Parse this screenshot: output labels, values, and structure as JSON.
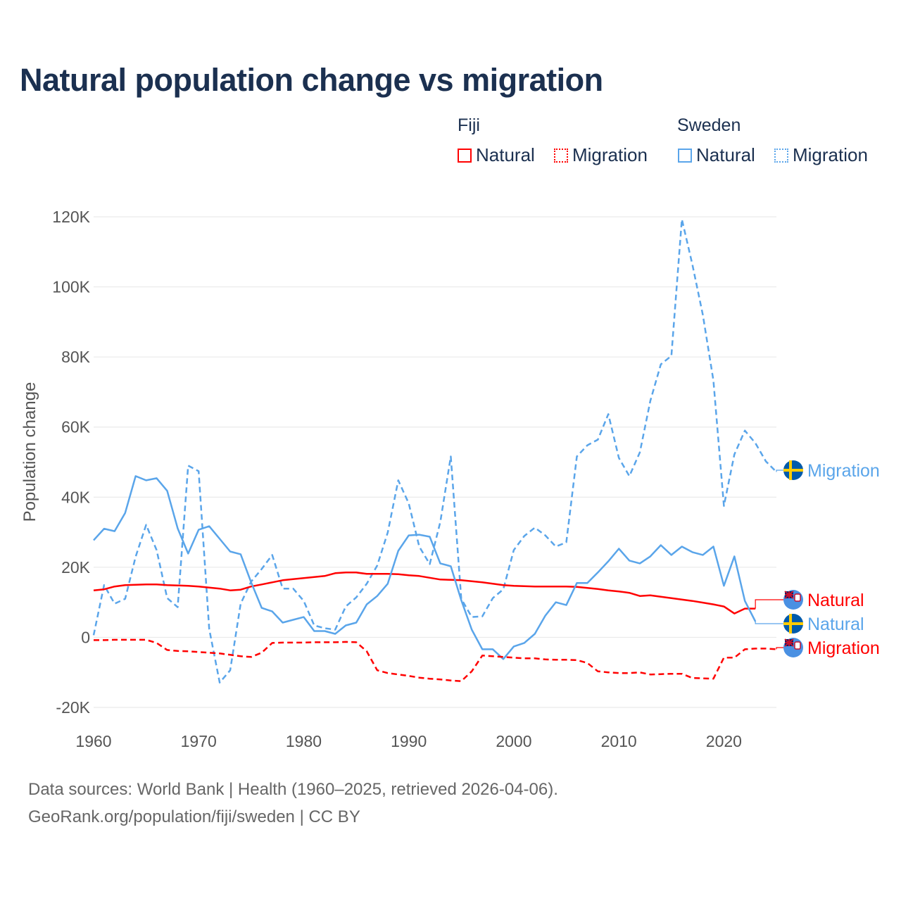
{
  "chart_data": {
    "type": "line",
    "title": "Natural population change vs migration",
    "xlabel": "",
    "ylabel": "Population change",
    "xlim": [
      1960,
      2025
    ],
    "ylim": [
      -20000,
      120000
    ],
    "x_ticks": [
      "1960",
      "1970",
      "1980",
      "1990",
      "2000",
      "2010",
      "2020"
    ],
    "x_tick_values": [
      1960,
      1970,
      1980,
      1990,
      2000,
      2010,
      2020
    ],
    "y_ticks": [
      "-20K",
      "0",
      "20K",
      "40K",
      "60K",
      "80K",
      "100K",
      "120K"
    ],
    "y_tick_values": [
      -20000,
      0,
      20000,
      40000,
      60000,
      80000,
      100000,
      120000
    ],
    "grid": true,
    "legend_placement": "top-right",
    "value_unit_multiplier": 1000,
    "legend": {
      "groups": [
        {
          "name": "Fiji",
          "items": [
            "Natural",
            "Migration"
          ]
        },
        {
          "name": "Sweden",
          "items": [
            "Natural",
            "Migration"
          ]
        }
      ]
    },
    "series": [
      {
        "name": "Sweden Migration",
        "country": "Sweden",
        "kind": "Migration",
        "label": "Migration",
        "color": "#5aa5ea",
        "dashed": true,
        "start_year": 1960,
        "values": [
          0.6,
          14.9,
          9.6,
          11,
          23,
          32.1,
          24.9,
          11.2,
          8.6,
          49,
          47.4,
          2.4,
          -12.9,
          -9.4,
          9.6,
          15.9,
          19.5,
          23.5,
          13.9,
          13.9,
          10.4,
          3.4,
          2.6,
          2.2,
          8.8,
          11.4,
          15.3,
          20.5,
          29.9,
          44.8,
          38.2,
          25.9,
          20.9,
          32.9,
          51.6,
          11,
          5.8,
          6,
          11.2,
          13.7,
          24.9,
          28.9,
          31.3,
          29.1,
          25.9,
          27.1,
          51.6,
          54.8,
          56.4,
          63.7,
          51.2,
          46,
          52.8,
          67.5,
          77.9,
          80.3,
          119.3,
          106.4,
          92,
          73.3,
          37.5,
          52.2,
          59,
          55.4,
          50.2,
          47.2
        ]
      },
      {
        "name": "Fiji Natural",
        "country": "Fiji",
        "kind": "Natural",
        "label": "Natural",
        "color": "#ff0000",
        "dashed": false,
        "start_year": 1960,
        "values": [
          13.4,
          13.7,
          14.5,
          14.9,
          15,
          15.1,
          15.1,
          14.9,
          14.8,
          14.7,
          14.5,
          14.2,
          13.9,
          13.4,
          13.6,
          14.5,
          15.1,
          15.7,
          16.3,
          16.6,
          16.9,
          17.2,
          17.5,
          18.3,
          18.5,
          18.5,
          18.1,
          18.1,
          18.1,
          18,
          17.7,
          17.5,
          17,
          16.5,
          16.4,
          16.3,
          16,
          15.7,
          15.3,
          14.9,
          14.7,
          14.6,
          14.5,
          14.5,
          14.5,
          14.5,
          14.4,
          14.1,
          13.8,
          13.4,
          13.1,
          12.7,
          11.8,
          12,
          11.6,
          11.2,
          10.8,
          10.4,
          9.9,
          9.4,
          8.8,
          6.8,
          8.2,
          8.2
        ]
      },
      {
        "name": "Sweden Natural",
        "country": "Sweden",
        "kind": "Natural",
        "label": "Natural",
        "color": "#5aa5ea",
        "dashed": false,
        "start_year": 1960,
        "values": [
          27.7,
          31,
          30.3,
          35.5,
          46,
          44.8,
          45.4,
          41.8,
          31.1,
          23.9,
          30.7,
          31.7,
          28.1,
          24.5,
          23.7,
          15.7,
          8.4,
          7.4,
          4.2,
          5,
          5.8,
          1.8,
          1.8,
          1,
          3.4,
          4.2,
          9.4,
          11.8,
          15.3,
          24.7,
          29.1,
          29.3,
          28.7,
          21.1,
          20.3,
          10.6,
          2.2,
          -3.4,
          -3.4,
          -6.2,
          -2.6,
          -1.6,
          1,
          6.2,
          10,
          9.2,
          15.5,
          15.5,
          18.5,
          21.7,
          25.3,
          21.9,
          21.1,
          23.1,
          26.3,
          23.5,
          25.9,
          24.3,
          23.5,
          25.9,
          14.7,
          23.1,
          10.4,
          4.5
        ]
      },
      {
        "name": "Fiji Migration",
        "country": "Fiji",
        "kind": "Migration",
        "label": "Migration",
        "color": "#ff0000",
        "dashed": true,
        "start_year": 1960,
        "values": [
          -0.8,
          -0.8,
          -0.7,
          -0.7,
          -0.7,
          -0.7,
          -1.6,
          -3.6,
          -3.9,
          -4,
          -4.2,
          -4.4,
          -4.6,
          -5,
          -5.4,
          -5.6,
          -4.4,
          -1.6,
          -1.5,
          -1.5,
          -1.5,
          -1.4,
          -1.4,
          -1.4,
          -1.3,
          -1.4,
          -4,
          -9.4,
          -10.2,
          -10.6,
          -11,
          -11.5,
          -11.8,
          -12,
          -12.3,
          -12.5,
          -9.7,
          -5.2,
          -5.4,
          -5.6,
          -5.8,
          -6,
          -6,
          -6.3,
          -6.4,
          -6.4,
          -6.5,
          -7.3,
          -9.7,
          -10,
          -10.2,
          -10.2,
          -10,
          -10.6,
          -10.5,
          -10.4,
          -10.4,
          -11.6,
          -11.7,
          -11.8,
          -5.8,
          -5.8,
          -3.4,
          -3.2,
          -3.2,
          -3.4
        ]
      }
    ]
  },
  "footer": {
    "line1": "Data sources: World Bank | Health (1960–2025, retrieved 2026-04-06).",
    "line2": "GeoRank.org/population/fiji/sweden | CC BY"
  },
  "colors": {
    "fiji": "#ff0000",
    "sweden": "#5aa5ea",
    "title": "#1b3050",
    "grid": "#e6e6e6"
  }
}
